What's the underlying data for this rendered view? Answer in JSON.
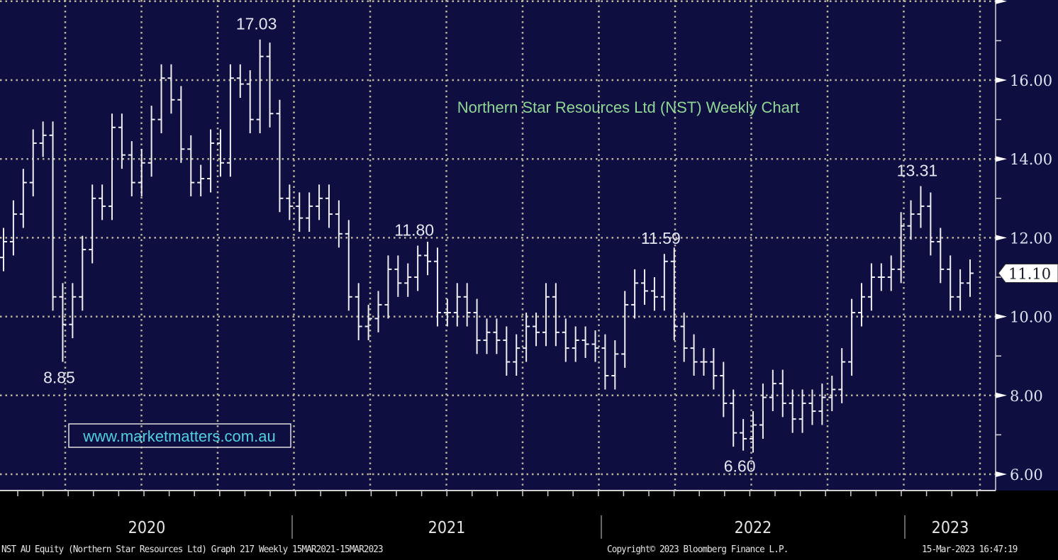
{
  "chart_data": {
    "type": "ohlc",
    "title": "Northern Star Resources Ltd (NST) Weekly Chart",
    "watermark": "www.marketmatters.com.au",
    "ylabel": "",
    "xlabel": "",
    "ylim": [
      5.6,
      18
    ],
    "yticks": [
      "6.00",
      "8.00",
      "10.00",
      "12.00",
      "14.00",
      "16.00"
    ],
    "ytick_values": [
      6,
      8,
      10,
      12,
      14,
      16
    ],
    "year_labels": [
      "2020",
      "2021",
      "2022",
      "2023"
    ],
    "grid": true,
    "first_open": 11.5,
    "bar_spread": 0.35,
    "closes": [
      11.9,
      12.6,
      13.4,
      14.4,
      14.6,
      10.5,
      9.8,
      10.5,
      11.7,
      13.0,
      12.8,
      14.8,
      14.1,
      13.4,
      13.9,
      15.0,
      16.05,
      15.5,
      14.25,
      13.4,
      13.5,
      14.4,
      13.9,
      16.05,
      15.9,
      15.0,
      16.6,
      15.15,
      13.0,
      12.8,
      12.5,
      12.8,
      13.0,
      12.6,
      12.1,
      10.5,
      9.75,
      9.95,
      10.3,
      11.2,
      10.85,
      11.0,
      11.55,
      11.4,
      10.1,
      10.1,
      10.5,
      10.1,
      9.4,
      9.6,
      9.4,
      8.85,
      9.2,
      9.75,
      9.6,
      10.5,
      9.6,
      9.2,
      9.4,
      9.3,
      9.2,
      8.5,
      9.05,
      10.3,
      10.85,
      10.65,
      10.5,
      11.4,
      9.75,
      9.2,
      8.85,
      8.85,
      8.5,
      7.8,
      7.05,
      6.9,
      7.25,
      7.95,
      8.3,
      7.8,
      7.4,
      7.8,
      7.6,
      7.95,
      8.15,
      8.85,
      10.1,
      10.5,
      11.0,
      11.0,
      11.2,
      12.3,
      12.6,
      12.8,
      11.9,
      11.2,
      10.5,
      10.85,
      11.1
    ],
    "annotations": [
      {
        "text": "8.85",
        "value": 8.85,
        "bar": 6,
        "type": "low"
      },
      {
        "text": "17.03",
        "value": 17.03,
        "bar": 26,
        "type": "high"
      },
      {
        "text": "11.80",
        "value": 11.8,
        "bar": 42,
        "type": "high"
      },
      {
        "text": "11.59",
        "value": 11.59,
        "bar": 67,
        "type": "high"
      },
      {
        "text": "6.60",
        "value": 6.6,
        "bar": 75,
        "type": "low"
      },
      {
        "text": "13.31",
        "value": 13.31,
        "bar": 93,
        "type": "high"
      }
    ],
    "last_price": "11.10",
    "last_value": 11.1
  },
  "footer": {
    "left": "NST AU Equity (Northern Star Resources Ltd) Graph 217  Weekly 15MAR2021-15MAR2023",
    "copyright": "Copyright© 2023 Bloomberg Finance L.P.",
    "timestamp": "15-Mar-2023 16:47:19"
  },
  "colors": {
    "background": "#0f0e40",
    "grid": "#b9b39a",
    "bars": "#eeeef4",
    "title": "#8fd694",
    "watermark": "#4fd0e0"
  }
}
